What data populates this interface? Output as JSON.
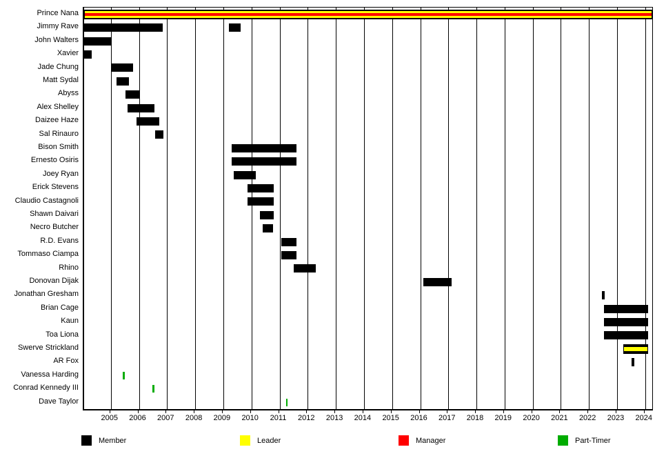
{
  "page": {
    "background": "#FFFFFF",
    "text_color": "#000000"
  },
  "chart_data": {
    "type": "gantt",
    "title": "",
    "x_axis": {
      "min": 2004.05,
      "max": 2024.25,
      "ticks": [
        2005,
        2006,
        2007,
        2008,
        2009,
        2010,
        2011,
        2012,
        2013,
        2014,
        2015,
        2016,
        2017,
        2018,
        2019,
        2020,
        2021,
        2022,
        2023,
        2024
      ]
    },
    "legend": [
      {
        "key": "member",
        "label": "Member",
        "color": "#000000"
      },
      {
        "key": "leader",
        "label": "Leader",
        "color": "#FFFF00"
      },
      {
        "key": "manager",
        "label": "Manager",
        "color": "#FF0000"
      },
      {
        "key": "part_timer",
        "label": "Part-Timer",
        "color": "#00AC00"
      }
    ],
    "rows": [
      {
        "name": "Prince Nana",
        "segments": [
          {
            "start": 2004.05,
            "end": 2024.25,
            "roles": [
              "member",
              "leader",
              "manager"
            ]
          }
        ]
      },
      {
        "name": "Jimmy Rave",
        "segments": [
          {
            "start": 2004.05,
            "end": 2006.85,
            "roles": [
              "member"
            ]
          },
          {
            "start": 2009.2,
            "end": 2009.62,
            "roles": [
              "member"
            ]
          }
        ]
      },
      {
        "name": "John Walters",
        "segments": [
          {
            "start": 2004.05,
            "end": 2005.02,
            "roles": [
              "member"
            ]
          }
        ]
      },
      {
        "name": "Xavier",
        "segments": [
          {
            "start": 2004.05,
            "end": 2004.33,
            "roles": [
              "member"
            ]
          }
        ]
      },
      {
        "name": "Jade Chung",
        "segments": [
          {
            "start": 2005.03,
            "end": 2005.8,
            "roles": [
              "member"
            ]
          }
        ]
      },
      {
        "name": "Matt Sydal",
        "segments": [
          {
            "start": 2005.2,
            "end": 2005.65,
            "roles": [
              "member"
            ]
          }
        ]
      },
      {
        "name": "Abyss",
        "segments": [
          {
            "start": 2005.52,
            "end": 2006.02,
            "roles": [
              "member"
            ]
          }
        ]
      },
      {
        "name": "Alex Shelley",
        "segments": [
          {
            "start": 2005.6,
            "end": 2006.55,
            "roles": [
              "member"
            ]
          }
        ]
      },
      {
        "name": "Daizee Haze",
        "segments": [
          {
            "start": 2005.9,
            "end": 2006.72,
            "roles": [
              "member"
            ]
          }
        ]
      },
      {
        "name": "Sal Rinauro",
        "segments": [
          {
            "start": 2006.57,
            "end": 2006.87,
            "roles": [
              "member"
            ]
          }
        ]
      },
      {
        "name": "Bison Smith",
        "segments": [
          {
            "start": 2009.3,
            "end": 2011.6,
            "roles": [
              "member"
            ]
          }
        ]
      },
      {
        "name": "Ernesto Osiris",
        "segments": [
          {
            "start": 2009.3,
            "end": 2011.6,
            "roles": [
              "member"
            ]
          }
        ]
      },
      {
        "name": "Joey Ryan",
        "segments": [
          {
            "start": 2009.36,
            "end": 2010.16,
            "roles": [
              "member"
            ]
          }
        ]
      },
      {
        "name": "Erick Stevens",
        "segments": [
          {
            "start": 2009.86,
            "end": 2010.78,
            "roles": [
              "member"
            ]
          }
        ]
      },
      {
        "name": "Claudio Castagnoli",
        "segments": [
          {
            "start": 2009.86,
            "end": 2010.78,
            "roles": [
              "member"
            ]
          }
        ]
      },
      {
        "name": "Shawn Daivari",
        "segments": [
          {
            "start": 2010.3,
            "end": 2010.78,
            "roles": [
              "member"
            ]
          }
        ]
      },
      {
        "name": "Necro Butcher",
        "segments": [
          {
            "start": 2010.4,
            "end": 2010.76,
            "roles": [
              "member"
            ]
          }
        ]
      },
      {
        "name": "R.D. Evans",
        "segments": [
          {
            "start": 2011.06,
            "end": 2011.6,
            "roles": [
              "member"
            ]
          }
        ]
      },
      {
        "name": "Tommaso Ciampa",
        "segments": [
          {
            "start": 2011.06,
            "end": 2011.6,
            "roles": [
              "member"
            ]
          }
        ]
      },
      {
        "name": "Rhino",
        "segments": [
          {
            "start": 2011.51,
            "end": 2012.28,
            "roles": [
              "member"
            ]
          }
        ]
      },
      {
        "name": "Donovan Dijak",
        "segments": [
          {
            "start": 2016.12,
            "end": 2017.12,
            "roles": [
              "member"
            ]
          }
        ]
      },
      {
        "name": "Jonathan Gresham",
        "segments": [
          {
            "start": 2022.47,
            "end": 2022.57,
            "roles": [
              "member"
            ]
          }
        ]
      },
      {
        "name": "Brian Cage",
        "segments": [
          {
            "start": 2022.53,
            "end": 2024.1,
            "roles": [
              "member"
            ]
          }
        ]
      },
      {
        "name": "Kaun",
        "segments": [
          {
            "start": 2022.53,
            "end": 2024.1,
            "roles": [
              "member"
            ]
          }
        ]
      },
      {
        "name": "Toa Liona",
        "segments": [
          {
            "start": 2022.53,
            "end": 2024.1,
            "roles": [
              "member"
            ]
          }
        ]
      },
      {
        "name": "Swerve Strickland",
        "segments": [
          {
            "start": 2023.22,
            "end": 2024.1,
            "roles": [
              "member",
              "leader"
            ]
          }
        ]
      },
      {
        "name": "AR Fox",
        "segments": [
          {
            "start": 2023.52,
            "end": 2023.62,
            "roles": [
              "member"
            ]
          }
        ]
      },
      {
        "name": "Vanessa Harding",
        "segments": [
          {
            "start": 2005.42,
            "end": 2005.49,
            "roles": [
              "part_timer"
            ]
          }
        ]
      },
      {
        "name": "Conrad Kennedy III",
        "segments": [
          {
            "start": 2006.48,
            "end": 2006.55,
            "roles": [
              "part_timer"
            ]
          }
        ]
      },
      {
        "name": "Dave Taylor",
        "segments": [
          {
            "start": 2011.22,
            "end": 2011.29,
            "roles": [
              "part_timer"
            ]
          }
        ]
      }
    ]
  }
}
